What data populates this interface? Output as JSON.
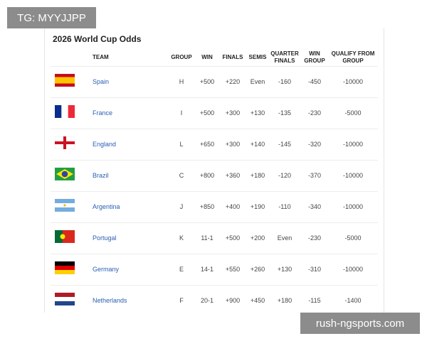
{
  "watermark_top": "TG: MYYJJPP",
  "watermark_bottom": "rush-ngsports.com",
  "title": "2026 World Cup Odds",
  "table": {
    "headers": [
      "TEAM",
      "GROUP",
      "WIN",
      "FINALS",
      "SEMIS",
      "QUARTER FINALS",
      "WIN GROUP",
      "QUALIFY FROM GROUP"
    ],
    "rows": [
      [
        "Spain",
        "H",
        "+500",
        "+220",
        "Even",
        "-160",
        "-450",
        "-10000"
      ],
      [
        "France",
        "I",
        "+500",
        "+300",
        "+130",
        "-135",
        "-230",
        "-5000"
      ],
      [
        "England",
        "L",
        "+650",
        "+300",
        "+140",
        "-145",
        "-320",
        "-10000"
      ],
      [
        "Brazil",
        "C",
        "+800",
        "+360",
        "+180",
        "-120",
        "-370",
        "-10000"
      ],
      [
        "Argentina",
        "J",
        "+850",
        "+400",
        "+190",
        "-110",
        "-340",
        "-10000"
      ],
      [
        "Portugal",
        "K",
        "11-1",
        "+500",
        "+200",
        "Even",
        "-230",
        "-5000"
      ],
      [
        "Germany",
        "E",
        "14-1",
        "+550",
        "+260",
        "+130",
        "-310",
        "-10000"
      ],
      [
        "Netherlands",
        "F",
        "20-1",
        "+900",
        "+450",
        "+180",
        "-115",
        "-1400"
      ]
    ]
  }
}
